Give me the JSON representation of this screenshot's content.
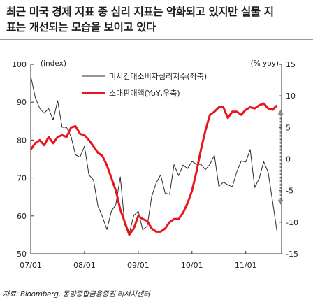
{
  "title": {
    "line1": "최근 미국 경제 지표 중 심리 지표는 악화되고 있지만 실물 지",
    "line2": "표는 개선되는 모습을 보이고 있다"
  },
  "source": "자료: Bloomberg, 동양종합금융증권 리서치센터",
  "chart_data": {
    "type": "line",
    "xlabel": "",
    "x_ticks": [
      "07/01",
      "08/01",
      "09/01",
      "10/01",
      "11/01"
    ],
    "y_left": {
      "unit_label": "(index)",
      "ticks": [
        50,
        60,
        70,
        80,
        90,
        100
      ],
      "ylim": [
        50,
        100
      ]
    },
    "y_right": {
      "unit_label": "(% yoy)",
      "ticks": [
        -15,
        -10,
        -5,
        0,
        5,
        10,
        15
      ],
      "ylim": [
        -15,
        15
      ]
    },
    "colors": {
      "consumer_sentiment": "#2a2a2a",
      "retail_sales": "#e8151b",
      "arrow": "#8a8a8a",
      "axis": "#333333"
    },
    "series": [
      {
        "name": "미시건대소비자심리지수(좌축)",
        "axis": "left",
        "x": [
          "2007-01",
          "2007-02",
          "2007-03",
          "2007-04",
          "2007-05",
          "2007-06",
          "2007-07",
          "2007-08",
          "2007-09",
          "2007-10",
          "2007-11",
          "2007-12",
          "2008-01",
          "2008-02",
          "2008-03",
          "2008-04",
          "2008-05",
          "2008-06",
          "2008-07",
          "2008-08",
          "2008-09",
          "2008-10",
          "2008-11",
          "2008-12",
          "2009-01",
          "2009-02",
          "2009-03",
          "2009-04",
          "2009-05",
          "2009-06",
          "2009-07",
          "2009-08",
          "2009-09",
          "2009-10",
          "2009-11",
          "2009-12",
          "2010-01",
          "2010-02",
          "2010-03",
          "2010-04",
          "2010-05",
          "2010-06",
          "2010-07",
          "2010-08",
          "2010-09",
          "2010-10",
          "2010-11",
          "2010-12",
          "2011-01",
          "2011-02",
          "2011-03",
          "2011-04",
          "2011-05",
          "2011-06",
          "2011-07",
          "2011-08"
        ],
        "values": [
          96.9,
          91.3,
          88.4,
          87.1,
          88.3,
          85.3,
          90.4,
          83.4,
          83.4,
          80.9,
          76.1,
          75.5,
          78.4,
          70.8,
          69.5,
          62.6,
          59.8,
          56.4,
          61.2,
          63.0,
          70.3,
          57.6,
          55.3,
          60.1,
          61.2,
          56.3,
          57.3,
          65.1,
          68.7,
          70.8,
          66.0,
          65.7,
          73.5,
          70.6,
          73.4,
          72.5,
          74.4,
          73.6,
          73.6,
          72.2,
          73.6,
          76.0,
          67.8,
          68.9,
          68.2,
          67.7,
          71.6,
          74.5,
          74.2,
          77.5,
          67.5,
          69.8,
          74.3,
          71.5,
          63.7,
          55.7
        ]
      },
      {
        "name": "소매판매액(YoY,우축)",
        "axis": "right",
        "x": [
          "2007-01",
          "2007-02",
          "2007-03",
          "2007-04",
          "2007-05",
          "2007-06",
          "2007-07",
          "2007-08",
          "2007-09",
          "2007-10",
          "2007-11",
          "2007-12",
          "2008-01",
          "2008-02",
          "2008-03",
          "2008-04",
          "2008-05",
          "2008-06",
          "2008-07",
          "2008-08",
          "2008-09",
          "2008-10",
          "2008-11",
          "2008-12",
          "2009-01",
          "2009-02",
          "2009-03",
          "2009-04",
          "2009-05",
          "2009-06",
          "2009-07",
          "2009-08",
          "2009-09",
          "2009-10",
          "2009-11",
          "2009-12",
          "2010-01",
          "2010-02",
          "2010-03",
          "2010-04",
          "2010-05",
          "2010-06",
          "2010-07",
          "2010-08",
          "2010-09",
          "2010-10",
          "2010-11",
          "2010-12",
          "2011-01",
          "2011-02",
          "2011-03",
          "2011-04",
          "2011-05",
          "2011-06",
          "2011-07",
          "2011-08"
        ],
        "values": [
          1.5,
          2.5,
          3.0,
          2.2,
          3.5,
          2.5,
          3.5,
          3.8,
          3.5,
          5.0,
          5.2,
          4.0,
          3.8,
          3.0,
          2.0,
          1.0,
          0.5,
          -1.0,
          -3.0,
          -5.0,
          -8.0,
          -10.0,
          -12.0,
          -11.0,
          -9.0,
          -9.5,
          -9.8,
          -11.0,
          -11.5,
          -11.5,
          -11.0,
          -10.0,
          -9.5,
          -9.5,
          -8.5,
          -7.0,
          -5.0,
          -2.0,
          1.5,
          4.5,
          7.0,
          7.5,
          8.2,
          8.2,
          6.5,
          7.5,
          7.5,
          7.0,
          7.8,
          8.2,
          8.0,
          8.5,
          8.8,
          8.0,
          7.8,
          8.5
        ]
      }
    ],
    "legend_position": "top-center",
    "annotations": [
      {
        "type": "arrow",
        "description": "dashed double-headed arrow between series at right end",
        "from_series": "소매판매액(YoY,우축)",
        "to_series": "미시건대소비자심리지수(좌축)"
      }
    ]
  }
}
